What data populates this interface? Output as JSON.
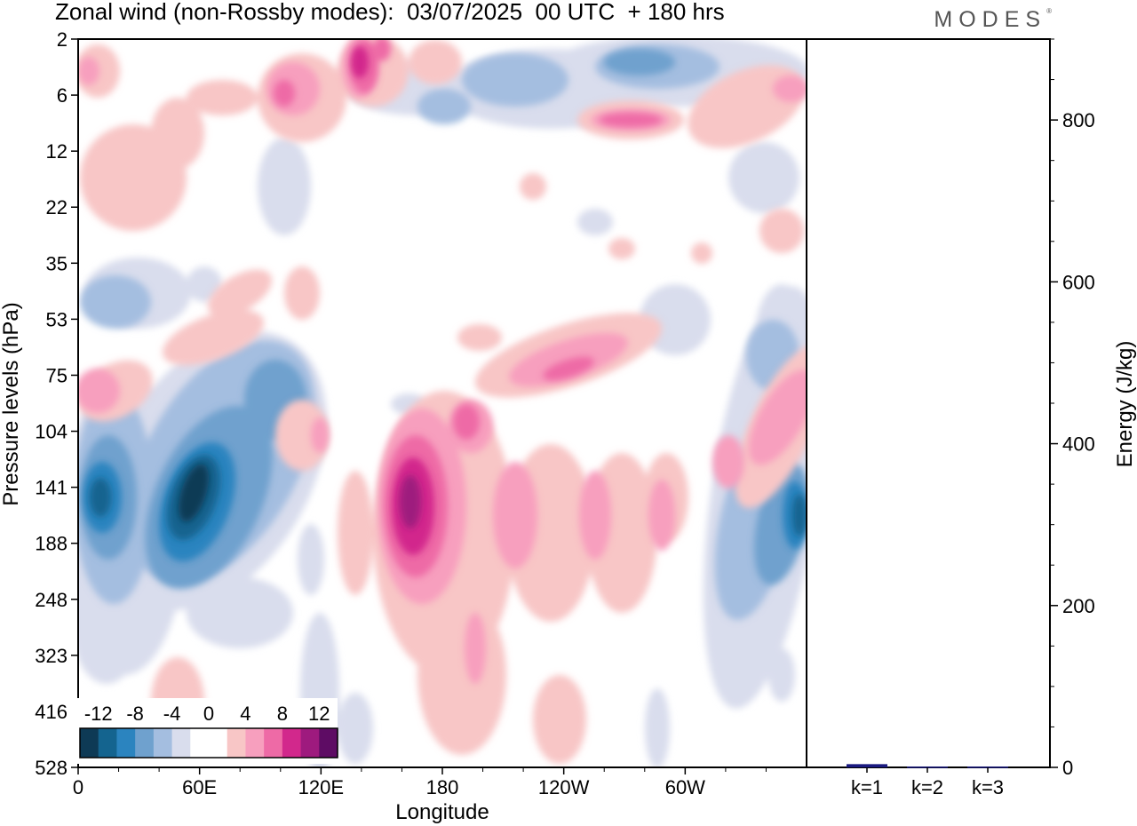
{
  "page": {
    "title": "Zonal wind (non-Rossby modes):  03/07/2025  00 UTC  + 180 hrs",
    "logo": "MODES",
    "logo_mark": "®"
  },
  "chart_data": [
    {
      "type": "heatmap",
      "title": "Zonal wind (non-Rossby modes):  03/07/2025  00 UTC  + 180 hrs",
      "xlabel": "Longitude",
      "ylabel": "Pressure levels (hPa)",
      "x_ticks": [
        "0",
        "60E",
        "120E",
        "180",
        "120W",
        "60W"
      ],
      "x_tick_degrees": [
        0,
        60,
        120,
        180,
        240,
        300
      ],
      "xlim": [
        0,
        360
      ],
      "y_ticks": [
        "2",
        "6",
        "12",
        "22",
        "35",
        "53",
        "75",
        "104",
        "141",
        "188",
        "248",
        "323",
        "416",
        "528"
      ],
      "colorbar": {
        "labels": [
          "-12",
          "-8",
          "-4",
          "0",
          "4",
          "8",
          "12"
        ],
        "colors": [
          "#0e3a55",
          "#14648f",
          "#2b84bf",
          "#6fa1ce",
          "#a4bee0",
          "#d9dded",
          "#ffffff",
          "#ffffff",
          "#f8c6c6",
          "#f79fbe",
          "#ee6aa6",
          "#d2288c",
          "#9e1a7e",
          "#5e0c64"
        ]
      },
      "features": [
        {
          "sign": "negative",
          "min_value": -14,
          "lon": 55,
          "level": "141"
        },
        {
          "sign": "negative",
          "min_value": -10,
          "lon": 12,
          "level": "141"
        },
        {
          "sign": "negative",
          "min_value": -10,
          "lon": 355,
          "level": "141"
        },
        {
          "sign": "positive",
          "max_value": 10,
          "lon": 168,
          "level": "141"
        },
        {
          "sign": "positive",
          "max_value": 9,
          "lon": 143,
          "level": "2"
        },
        {
          "sign": "positive",
          "max_value": 7,
          "lon": 250,
          "level": "75"
        }
      ]
    },
    {
      "type": "bar",
      "ylabel": "Energy (J/kg)",
      "categories": [
        "k=1",
        "k=2",
        "k=3"
      ],
      "values": [
        4,
        1,
        1
      ],
      "ylim": [
        0,
        900
      ],
      "y_ticks": [
        0,
        200,
        400,
        600,
        800
      ],
      "bar_color": "#1a1a80"
    }
  ]
}
